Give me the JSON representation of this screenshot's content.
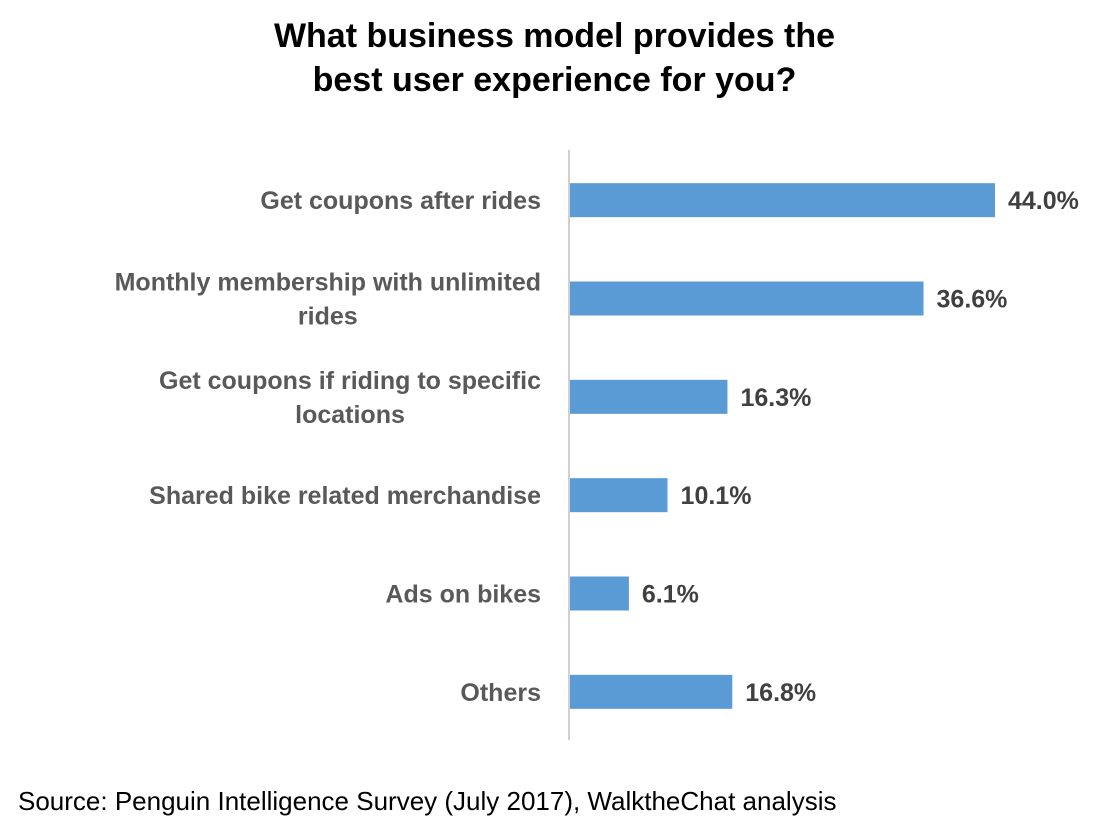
{
  "chart_data": {
    "type": "bar",
    "orientation": "horizontal",
    "title_lines": [
      "What business model provides the",
      "best user experience for you?"
    ],
    "categories": [
      [
        "Get coupons after rides"
      ],
      [
        "Monthly membership with unlimited",
        "rides"
      ],
      [
        "Get coupons if riding to specific",
        "locations"
      ],
      [
        "Shared bike related merchandise"
      ],
      [
        "Ads on bikes"
      ],
      [
        "Others"
      ]
    ],
    "values": [
      44.0,
      36.6,
      16.3,
      10.1,
      6.1,
      16.8
    ],
    "value_labels": [
      "44.0%",
      "36.6%",
      "16.3%",
      "10.1%",
      "6.1%",
      "16.8%"
    ],
    "unit": "%",
    "xlim": [
      0,
      44.0
    ],
    "grid": false,
    "legend": "none",
    "bar_color": "#5b9bd5",
    "label_color": "#595959",
    "value_label_color": "#404040",
    "axis_color": "#d0d0d0"
  },
  "source": "Source: Penguin Intelligence Survey (July 2017), WalktheChat analysis"
}
